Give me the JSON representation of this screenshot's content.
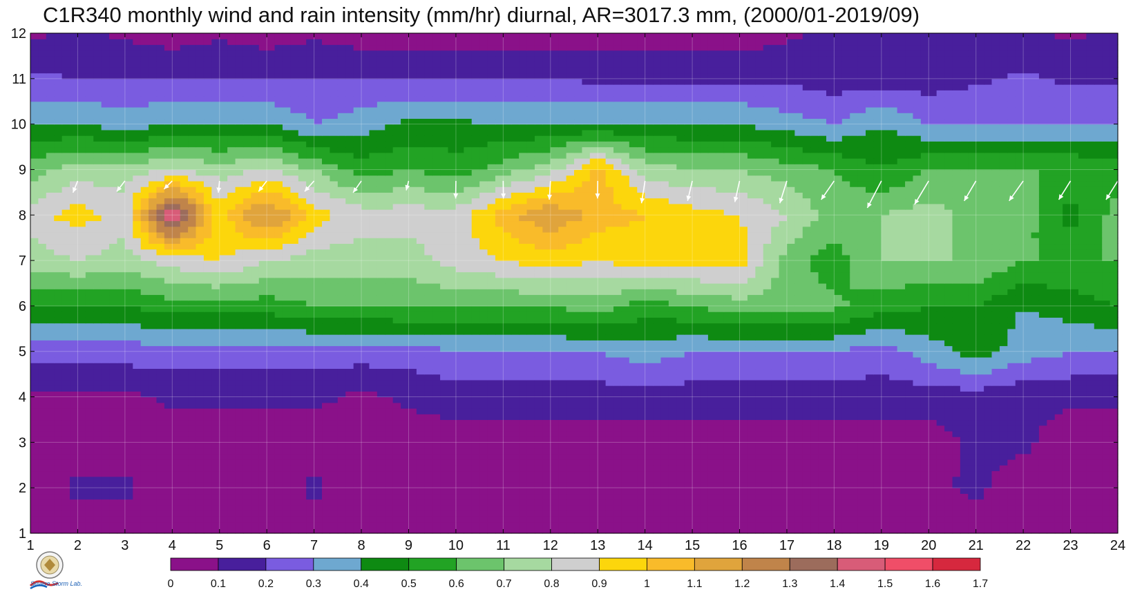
{
  "chart_data": {
    "type": "heatmap",
    "title": "C1R340 monthly wind and rain intensity (mm/hr) diurnal, AR=3017.3 mm, (2000/01-2019/09)",
    "xlabel": "",
    "ylabel": "",
    "xlim": [
      1,
      24
    ],
    "ylim": [
      1,
      12
    ],
    "x_ticks": [
      "1",
      "2",
      "3",
      "4",
      "5",
      "6",
      "7",
      "8",
      "9",
      "10",
      "11",
      "12",
      "13",
      "14",
      "15",
      "16",
      "17",
      "18",
      "19",
      "20",
      "21",
      "22",
      "23",
      "24"
    ],
    "y_ticks": [
      "1",
      "2",
      "3",
      "4",
      "5",
      "6",
      "7",
      "8",
      "9",
      "10",
      "11",
      "12"
    ],
    "colorbar": {
      "levels": [
        "0",
        "0.1",
        "0.2",
        "0.3",
        "0.4",
        "0.5",
        "0.6",
        "0.7",
        "0.8",
        "0.9",
        "1",
        "1.1",
        "1.2",
        "1.3",
        "1.4",
        "1.5",
        "1.6",
        "1.7"
      ],
      "colors": [
        "#8a1189",
        "#481f9c",
        "#7a5ce0",
        "#6ea8d0",
        "#0e8a12",
        "#22a324",
        "#6cc46c",
        "#a6d9a0",
        "#cfcfcf",
        "#fcd60c",
        "#f9bb2a",
        "#e0a43c",
        "#c0844a",
        "#9c6c5c",
        "#d85c78",
        "#f04e68",
        "#d6283e"
      ]
    },
    "intensity_grid": [
      [
        0.05,
        0.05,
        0.05,
        0.05,
        0.05,
        0.05,
        0.05,
        0.05,
        0.05,
        0.05,
        0.05,
        0.05,
        0.05,
        0.05,
        0.05,
        0.05,
        0.05,
        0.05,
        0.05,
        0.05,
        0.05,
        0.05,
        0.05,
        0.05
      ],
      [
        0.05,
        0.12,
        0.12,
        0.05,
        0.05,
        0.05,
        0.12,
        0.05,
        0.05,
        0.05,
        0.05,
        0.05,
        0.05,
        0.05,
        0.05,
        0.05,
        0.05,
        0.05,
        0.05,
        0.08,
        0.12,
        0.05,
        0.05,
        0.05
      ],
      [
        0.05,
        0.05,
        0.05,
        0.05,
        0.05,
        0.05,
        0.05,
        0.05,
        0.05,
        0.05,
        0.05,
        0.05,
        0.05,
        0.05,
        0.05,
        0.05,
        0.05,
        0.05,
        0.05,
        0.05,
        0.12,
        0.12,
        0.05,
        0.05
      ],
      [
        0.08,
        0.08,
        0.08,
        0.12,
        0.12,
        0.12,
        0.12,
        0.08,
        0.12,
        0.15,
        0.15,
        0.15,
        0.15,
        0.15,
        0.15,
        0.15,
        0.15,
        0.15,
        0.15,
        0.15,
        0.15,
        0.12,
        0.12,
        0.12
      ],
      [
        0.25,
        0.25,
        0.25,
        0.25,
        0.25,
        0.25,
        0.25,
        0.25,
        0.25,
        0.3,
        0.3,
        0.3,
        0.3,
        0.35,
        0.3,
        0.3,
        0.3,
        0.3,
        0.25,
        0.35,
        0.45,
        0.35,
        0.3,
        0.3
      ],
      [
        0.5,
        0.5,
        0.5,
        0.55,
        0.55,
        0.55,
        0.6,
        0.6,
        0.62,
        0.6,
        0.6,
        0.6,
        0.65,
        0.55,
        0.6,
        0.65,
        0.65,
        0.62,
        0.55,
        0.5,
        0.5,
        0.4,
        0.45,
        0.5
      ],
      [
        0.75,
        0.8,
        0.75,
        0.85,
        0.9,
        0.8,
        0.75,
        0.75,
        0.75,
        0.85,
        0.9,
        0.95,
        0.9,
        0.95,
        0.95,
        0.95,
        0.65,
        0.55,
        0.7,
        0.7,
        0.7,
        0.6,
        0.6,
        0.6
      ],
      [
        0.85,
        0.95,
        0.85,
        1.55,
        0.95,
        1.25,
        0.95,
        0.85,
        0.85,
        0.85,
        1.05,
        1.2,
        1.05,
        1.0,
        0.95,
        0.9,
        0.8,
        0.65,
        0.7,
        0.75,
        0.65,
        0.65,
        0.45,
        0.65
      ],
      [
        0.65,
        0.75,
        0.75,
        0.8,
        0.75,
        0.8,
        0.7,
        0.55,
        0.6,
        0.55,
        0.65,
        0.75,
        1.05,
        0.75,
        0.7,
        0.7,
        0.65,
        0.6,
        0.5,
        0.6,
        0.6,
        0.6,
        0.6,
        0.55
      ],
      [
        0.4,
        0.4,
        0.35,
        0.4,
        0.4,
        0.4,
        0.3,
        0.35,
        0.42,
        0.42,
        0.4,
        0.4,
        0.4,
        0.4,
        0.4,
        0.4,
        0.35,
        0.3,
        0.4,
        0.3,
        0.3,
        0.3,
        0.3,
        0.3
      ],
      [
        0.22,
        0.2,
        0.2,
        0.2,
        0.2,
        0.2,
        0.2,
        0.2,
        0.2,
        0.2,
        0.2,
        0.2,
        0.18,
        0.18,
        0.18,
        0.18,
        0.18,
        0.15,
        0.15,
        0.15,
        0.18,
        0.22,
        0.18,
        0.18
      ],
      [
        0.08,
        0.12,
        0.08,
        0.05,
        0.08,
        0.05,
        0.08,
        0.05,
        0.05,
        0.05,
        0.05,
        0.05,
        0.05,
        0.05,
        0.05,
        0.05,
        0.08,
        0.12,
        0.12,
        0.12,
        0.12,
        0.12,
        0.08,
        0.12
      ]
    ],
    "wind_vectors": {
      "y_level": 8.75,
      "x": [
        2,
        3,
        4,
        5,
        6,
        7,
        8,
        9,
        10,
        11,
        12,
        13,
        14,
        15,
        16,
        17,
        18,
        19,
        20,
        21,
        22,
        23,
        24
      ],
      "u": [
        -0.2,
        -0.35,
        -0.35,
        -0.05,
        -0.35,
        -0.4,
        -0.35,
        -0.1,
        -0.01,
        0.01,
        -0.05,
        -0.01,
        -0.15,
        -0.2,
        -0.2,
        -0.3,
        -0.55,
        -0.6,
        -0.6,
        -0.5,
        -0.6,
        -0.5,
        -0.5
      ],
      "v": [
        -0.5,
        -0.45,
        -0.35,
        -0.5,
        -0.45,
        -0.45,
        -0.5,
        -0.4,
        -0.75,
        -0.75,
        -0.8,
        -0.75,
        -0.95,
        -0.85,
        -0.9,
        -0.95,
        -0.8,
        -1.15,
        -1.0,
        -0.85,
        -0.85,
        -0.8,
        -0.8
      ]
    }
  },
  "logo": {
    "lab_text": "Severe Storm Lab."
  }
}
